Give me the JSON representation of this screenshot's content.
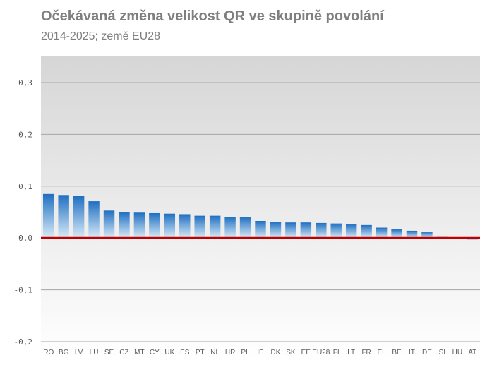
{
  "chart_data": {
    "type": "bar",
    "title": "Očekávaná změna velikost QR ve skupině povolání",
    "subtitle": "2014-2025; země EU28",
    "xlabel": "",
    "ylabel": "",
    "ylim": [
      -0.2,
      0.35
    ],
    "yticks": [
      -0.2,
      -0.1,
      0.0,
      0.1,
      0.2,
      0.3
    ],
    "ytick_labels": [
      "-0,2",
      "-0,1",
      "0,0",
      "0,1",
      "0,2",
      "0,3"
    ],
    "grid": true,
    "categories": [
      "RO",
      "BG",
      "LV",
      "LU",
      "SE",
      "CZ",
      "MT",
      "CY",
      "UK",
      "ES",
      "PT",
      "NL",
      "HR",
      "PL",
      "IE",
      "DK",
      "SK",
      "EE",
      "EU28",
      "FI",
      "LT",
      "FR",
      "EL",
      "BE",
      "IT",
      "DE",
      "SI",
      "HU",
      "AT"
    ],
    "values": [
      0.085,
      0.083,
      0.081,
      0.071,
      0.053,
      0.05,
      0.049,
      0.048,
      0.047,
      0.046,
      0.043,
      0.043,
      0.041,
      0.041,
      0.033,
      0.031,
      0.03,
      0.03,
      0.029,
      0.028,
      0.027,
      0.025,
      0.02,
      0.017,
      0.014,
      0.012,
      0.002,
      -0.001,
      -0.004
    ],
    "colors": {
      "bar_top": "#1f6fc1",
      "bar_bottom": "#d9ebf8",
      "zero_line": "#c00000",
      "grid": "#a6a6a6",
      "bg_top": "#d6d6d6",
      "bg_bottom": "#ffffff"
    }
  }
}
